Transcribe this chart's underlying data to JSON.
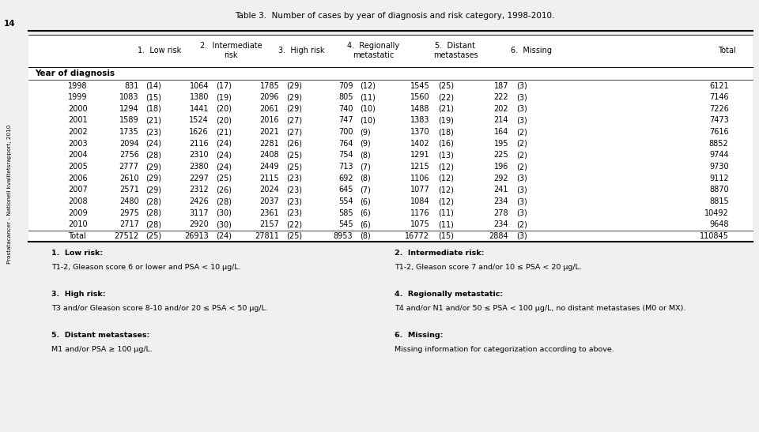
{
  "title": "Table 3.  Number of cases by year of diagnosis and risk category, 1998-2010.",
  "side_text": "Prostatacancer - Nationell kvalitetsrapport, 2010",
  "page_num": "14",
  "col_headers": [
    "1.  Low risk",
    "2.  Intermediate\nrisk",
    "3.  High risk",
    "4.  Regionally\nmetastatic",
    "5.  Distant\nmetastases",
    "6.  Missing",
    "Total"
  ],
  "row_header": "Year of diagnosis",
  "rows": [
    {
      "year": "1998",
      "data": [
        [
          831,
          14
        ],
        [
          1064,
          17
        ],
        [
          1785,
          29
        ],
        [
          709,
          12
        ],
        [
          1545,
          25
        ],
        [
          187,
          3
        ],
        6121
      ]
    },
    {
      "year": "1999",
      "data": [
        [
          1083,
          15
        ],
        [
          1380,
          19
        ],
        [
          2096,
          29
        ],
        [
          805,
          11
        ],
        [
          1560,
          22
        ],
        [
          222,
          3
        ],
        7146
      ]
    },
    {
      "year": "2000",
      "data": [
        [
          1294,
          18
        ],
        [
          1441,
          20
        ],
        [
          2061,
          29
        ],
        [
          740,
          10
        ],
        [
          1488,
          21
        ],
        [
          202,
          3
        ],
        7226
      ]
    },
    {
      "year": "2001",
      "data": [
        [
          1589,
          21
        ],
        [
          1524,
          20
        ],
        [
          2016,
          27
        ],
        [
          747,
          10
        ],
        [
          1383,
          19
        ],
        [
          214,
          3
        ],
        7473
      ]
    },
    {
      "year": "2002",
      "data": [
        [
          1735,
          23
        ],
        [
          1626,
          21
        ],
        [
          2021,
          27
        ],
        [
          700,
          9
        ],
        [
          1370,
          18
        ],
        [
          164,
          2
        ],
        7616
      ]
    },
    {
      "year": "2003",
      "data": [
        [
          2094,
          24
        ],
        [
          2116,
          24
        ],
        [
          2281,
          26
        ],
        [
          764,
          9
        ],
        [
          1402,
          16
        ],
        [
          195,
          2
        ],
        8852
      ]
    },
    {
      "year": "2004",
      "data": [
        [
          2756,
          28
        ],
        [
          2310,
          24
        ],
        [
          2408,
          25
        ],
        [
          754,
          8
        ],
        [
          1291,
          13
        ],
        [
          225,
          2
        ],
        9744
      ]
    },
    {
      "year": "2005",
      "data": [
        [
          2777,
          29
        ],
        [
          2380,
          24
        ],
        [
          2449,
          25
        ],
        [
          713,
          7
        ],
        [
          1215,
          12
        ],
        [
          196,
          2
        ],
        9730
      ]
    },
    {
      "year": "2006",
      "data": [
        [
          2610,
          29
        ],
        [
          2297,
          25
        ],
        [
          2115,
          23
        ],
        [
          692,
          8
        ],
        [
          1106,
          12
        ],
        [
          292,
          3
        ],
        9112
      ]
    },
    {
      "year": "2007",
      "data": [
        [
          2571,
          29
        ],
        [
          2312,
          26
        ],
        [
          2024,
          23
        ],
        [
          645,
          7
        ],
        [
          1077,
          12
        ],
        [
          241,
          3
        ],
        8870
      ]
    },
    {
      "year": "2008",
      "data": [
        [
          2480,
          28
        ],
        [
          2426,
          28
        ],
        [
          2037,
          23
        ],
        [
          554,
          6
        ],
        [
          1084,
          12
        ],
        [
          234,
          3
        ],
        8815
      ]
    },
    {
      "year": "2009",
      "data": [
        [
          2975,
          28
        ],
        [
          3117,
          30
        ],
        [
          2361,
          23
        ],
        [
          585,
          6
        ],
        [
          1176,
          11
        ],
        [
          278,
          3
        ],
        10492
      ]
    },
    {
      "year": "2010",
      "data": [
        [
          2717,
          28
        ],
        [
          2920,
          30
        ],
        [
          2157,
          22
        ],
        [
          545,
          6
        ],
        [
          1075,
          11
        ],
        [
          234,
          2
        ],
        9648
      ]
    },
    {
      "year": "Total",
      "data": [
        [
          27512,
          25
        ],
        [
          26913,
          24
        ],
        [
          27811,
          25
        ],
        [
          8953,
          8
        ],
        [
          16772,
          15
        ],
        [
          2884,
          3
        ],
        110845
      ]
    }
  ],
  "footnotes_left": [
    [
      "1.  Low risk:",
      "T1-2, Gleason score 6 or lower and PSA < 10 μg/L."
    ],
    [
      "3.  High risk:",
      "T3 and/or Gleason score 8-10 and/or 20 ≤ PSA < 50 μg/L."
    ],
    [
      "5.  Distant metastases:",
      "M1 and/or PSA ≥ 100 μg/L."
    ]
  ],
  "footnotes_right": [
    [
      "2.  Intermediate risk:",
      "T1-2, Gleason score 7 and/or 10 ≤ PSA < 20 μg/L."
    ],
    [
      "4.  Regionally metastatic:",
      "T4 and/or N1 and/or 50 ≤ PSA < 100 μg/L, no distant metastases (M0 or MX)."
    ],
    [
      "6.  Missing:",
      "Missing information for categorization according to above."
    ]
  ],
  "bg_color": "#f0f0f0",
  "table_bg": "#ffffff"
}
